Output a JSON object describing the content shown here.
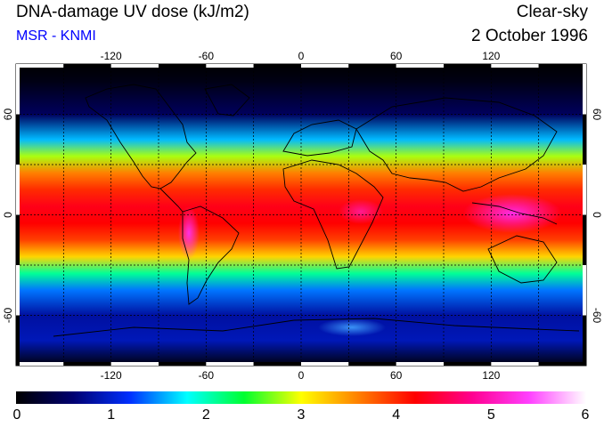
{
  "header": {
    "title": "DNA-damage UV dose (kJ/m2)",
    "subtitle": "MSR - KNMI",
    "sky_condition": "Clear-sky",
    "date": "2 October 1996"
  },
  "map": {
    "projection": "equirectangular",
    "lon_ticks": [
      "-120",
      "-60",
      "0",
      "60",
      "120"
    ],
    "lat_ticks_left": [
      "60",
      "0",
      "-60"
    ],
    "lat_ticks_right": [
      "60",
      "0",
      "-60"
    ],
    "graticule": "dashed, 30 degree spacing"
  },
  "colorbar": {
    "min": 0,
    "max": 6,
    "labels": [
      "0",
      "1",
      "2",
      "3",
      "4",
      "5",
      "6"
    ],
    "stops": [
      "#000000",
      "#000070",
      "#0030ff",
      "#00ffff",
      "#00ff30",
      "#ffff00",
      "#ff8000",
      "#ff0000",
      "#ff0090",
      "#ff40ff",
      "#ffffff"
    ]
  },
  "chart_data": {
    "type": "heatmap",
    "title": "DNA-damage UV dose (kJ/m2)",
    "variable": "DNA-damage UV dose",
    "unit": "kJ/m2",
    "value_range": [
      0,
      6
    ],
    "zonal_profile": {
      "lat": [
        80,
        60,
        45,
        35,
        25,
        15,
        5,
        -5,
        -15,
        -25,
        -35,
        -45,
        -60,
        -75
      ],
      "dose": [
        0.1,
        0.5,
        1.6,
        2.8,
        3.6,
        4.0,
        4.3,
        4.2,
        3.9,
        3.2,
        2.1,
        1.4,
        0.8,
        0.9
      ]
    }
  }
}
